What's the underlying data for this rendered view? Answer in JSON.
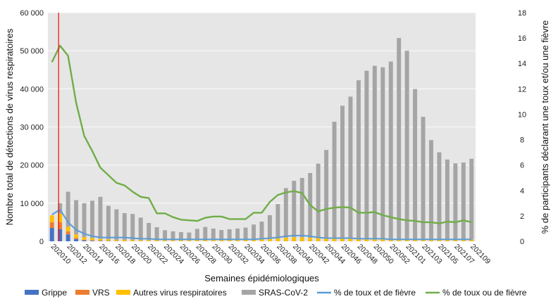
{
  "chart_data": {
    "type": "bar",
    "xlabel": "Semaines épidémiologiques",
    "ylabel_left": "Nombre total de détections de virus respiratoires",
    "ylabel_right": "% de participants déclarant une toux et/ou une fièvre",
    "ylim_left": [
      0,
      60000
    ],
    "ylim_right": [
      0,
      18
    ],
    "left_ticks": [
      "0",
      "10 000",
      "20 000",
      "30 000",
      "40 000",
      "50 000",
      "60 000"
    ],
    "right_ticks": [
      "0",
      "2",
      "4",
      "6",
      "8",
      "10",
      "12",
      "14",
      "16",
      "18"
    ],
    "categories": [
      "202010",
      "202011",
      "202012",
      "202013",
      "202014",
      "202015",
      "202016",
      "202017",
      "202018",
      "202019",
      "202020",
      "202021",
      "202022",
      "202023",
      "202024",
      "202025",
      "202026",
      "202027",
      "202028",
      "202029",
      "202030",
      "202031",
      "202032",
      "202033",
      "202034",
      "202035",
      "202036",
      "202037",
      "202038",
      "202039",
      "202040",
      "202041",
      "202042",
      "202043",
      "202044",
      "202045",
      "202046",
      "202047",
      "202048",
      "202049",
      "202050",
      "202051",
      "202052",
      "202053",
      "202101",
      "202102",
      "202103",
      "202104",
      "202105",
      "202106",
      "202107",
      "202108",
      "202109"
    ],
    "labeled_ticks": [
      "202010",
      "202012",
      "202014",
      "202016",
      "202018",
      "202020",
      "202022",
      "202024",
      "202026",
      "202028",
      "202030",
      "202032",
      "202034",
      "202036",
      "202038",
      "202040",
      "202042",
      "202044",
      "202046",
      "202048",
      "202050",
      "202052",
      "202101",
      "202103",
      "202105",
      "202107",
      "202109"
    ],
    "vertical_marker_index": 1,
    "series": [
      {
        "name": "Grippe",
        "color": "#4472c4",
        "kind": "bar",
        "values": [
          3500,
          3200,
          1800,
          600,
          250,
          150,
          100,
          80,
          60,
          50,
          50,
          40,
          40,
          30,
          30,
          30,
          30,
          30,
          30,
          30,
          30,
          30,
          30,
          30,
          30,
          30,
          30,
          30,
          30,
          30,
          30,
          30,
          30,
          30,
          30,
          30,
          30,
          30,
          30,
          30,
          30,
          30,
          30,
          30,
          30,
          30,
          30,
          30,
          30,
          30,
          30,
          30,
          30
        ]
      },
      {
        "name": "VRS",
        "color": "#ed7d31",
        "kind": "bar",
        "values": [
          1500,
          1800,
          800,
          300,
          150,
          100,
          60,
          40,
          30,
          30,
          30,
          20,
          20,
          20,
          20,
          20,
          20,
          20,
          20,
          20,
          20,
          20,
          20,
          20,
          20,
          20,
          30,
          30,
          30,
          30,
          40,
          40,
          40,
          40,
          40,
          40,
          40,
          40,
          30,
          30,
          30,
          30,
          30,
          30,
          30,
          30,
          30,
          30,
          30,
          30,
          30,
          30,
          30
        ]
      },
      {
        "name": "Autres virus respiratoires",
        "color": "#ffc000",
        "kind": "bar",
        "values": [
          1800,
          2200,
          1200,
          900,
          700,
          600,
          500,
          400,
          300,
          300,
          300,
          250,
          250,
          250,
          250,
          250,
          250,
          250,
          300,
          300,
          300,
          300,
          300,
          300,
          350,
          350,
          400,
          500,
          700,
          900,
          1000,
          950,
          850,
          800,
          800,
          800,
          800,
          700,
          700,
          700,
          700,
          600,
          600,
          500,
          450,
          400,
          400,
          400,
          400,
          400,
          400,
          400,
          400
        ]
      },
      {
        "name": "SRAS-CoV-2",
        "color": "#a5a5a5",
        "kind": "bar",
        "values": [
          0,
          2800,
          9200,
          9000,
          8900,
          9800,
          11000,
          8800,
          8000,
          7000,
          6800,
          5900,
          4500,
          3400,
          2600,
          2300,
          2100,
          2000,
          2900,
          3400,
          3000,
          2600,
          2800,
          3000,
          3200,
          4000,
          4700,
          6300,
          9000,
          13000,
          14800,
          15600,
          17000,
          19500,
          23100,
          30500,
          34700,
          37200,
          41500,
          44000,
          45300,
          45000,
          46500,
          52800,
          49500,
          39500,
          32200,
          26100,
          22900,
          21000,
          20000,
          20200,
          21200
        ]
      },
      {
        "name": "% de toux et de fièvre",
        "color": "#5b9bd5",
        "kind": "line",
        "values": [
          2.1,
          2.5,
          1.5,
          0.9,
          0.6,
          0.4,
          0.3,
          0.3,
          0.3,
          0.3,
          0.25,
          0.2,
          0.2,
          0.15,
          0.15,
          0.15,
          0.15,
          0.15,
          0.15,
          0.15,
          0.15,
          0.15,
          0.15,
          0.15,
          0.15,
          0.15,
          0.2,
          0.25,
          0.3,
          0.4,
          0.45,
          0.45,
          0.4,
          0.3,
          0.25,
          0.25,
          0.25,
          0.25,
          0.2,
          0.2,
          0.2,
          0.2,
          0.15,
          0.15,
          0.15,
          0.15,
          0.15,
          0.15,
          0.15,
          0.15,
          0.15,
          0.15,
          0.15
        ]
      },
      {
        "name": "% de toux ou de fièvre",
        "color": "#70ad47",
        "kind": "line",
        "values": [
          14.1,
          15.4,
          14.6,
          10.9,
          8.3,
          7.1,
          5.8,
          5.2,
          4.6,
          4.4,
          3.9,
          3.5,
          3.4,
          2.2,
          2.2,
          1.9,
          1.7,
          1.65,
          1.6,
          1.85,
          1.95,
          1.95,
          1.75,
          1.75,
          1.75,
          2.25,
          2.25,
          3.1,
          3.65,
          3.85,
          3.95,
          3.8,
          2.85,
          2.35,
          2.55,
          2.65,
          2.7,
          2.65,
          2.25,
          2.25,
          2.3,
          2.05,
          1.9,
          1.75,
          1.65,
          1.6,
          1.5,
          1.5,
          1.4,
          1.55,
          1.5,
          1.65,
          1.5
        ]
      }
    ]
  }
}
